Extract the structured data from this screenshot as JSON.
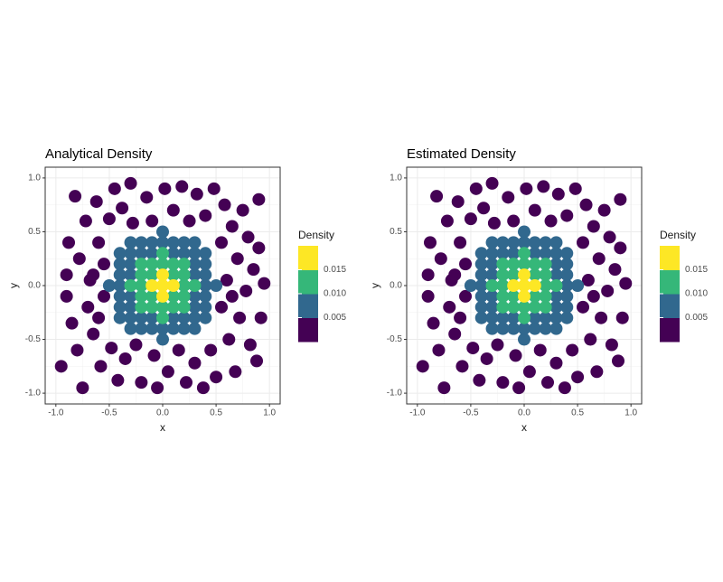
{
  "chart_data": [
    {
      "type": "scatter",
      "title": "Analytical Density",
      "x_label": "x",
      "y_label": "y",
      "xlim": [
        -1.1,
        1.1
      ],
      "ylim": [
        -1.1,
        1.1
      ],
      "xticks": [
        {
          "value": -1.0,
          "label": "-1.0"
        },
        -0.5,
        {
          "value": 0.0,
          "label": "0.0"
        },
        0.5,
        {
          "value": 1.0,
          "label": "1.0"
        }
      ],
      "yticks": [
        {
          "value": -1.0,
          "label": "-1.0"
        },
        -0.5,
        {
          "value": 0.0,
          "label": "0.0"
        },
        0.5,
        {
          "value": 1.0,
          "label": "1.0"
        }
      ],
      "grid": true,
      "legend": {
        "title": "Density",
        "lim": [
          0,
          0.02
        ],
        "colors": [
          "#440154",
          "#31688e",
          "#35b779",
          "#fde725"
        ],
        "breaks": [
          {
            "value": 0.015,
            "label": "0.015"
          },
          {
            "value": 0.01,
            "label": "0.010"
          },
          {
            "value": 0.005,
            "label": "0.005"
          }
        ]
      },
      "series": [
        {
          "color": "#440154",
          "x": [
            -0.95,
            -0.9,
            -0.9,
            -0.88,
            -0.85,
            -0.82,
            -0.8,
            -0.78,
            -0.75,
            -0.72,
            -0.7,
            -0.68,
            -0.65,
            -0.62,
            -0.6,
            -0.58,
            -0.55,
            -0.55,
            -0.5,
            -0.48,
            -0.45,
            -0.42,
            -0.38,
            -0.35,
            -0.3,
            -0.28,
            -0.25,
            -0.2,
            -0.15,
            -0.1,
            -0.08,
            -0.05,
            0.02,
            0.05,
            0.1,
            0.15,
            0.18,
            0.22,
            0.25,
            0.3,
            0.32,
            0.38,
            0.4,
            0.45,
            0.48,
            0.5,
            0.55,
            0.55,
            0.58,
            0.6,
            0.62,
            0.65,
            0.68,
            0.7,
            0.72,
            0.75,
            0.78,
            0.8,
            0.82,
            0.85,
            0.88,
            0.9,
            0.92,
            0.95,
            0.9,
            -0.6,
            0.65,
            -0.65
          ],
          "y": [
            -0.75,
            0.1,
            -0.1,
            0.4,
            -0.35,
            0.83,
            -0.6,
            0.25,
            -0.95,
            0.6,
            -0.2,
            0.05,
            -0.45,
            0.78,
            0.4,
            -0.75,
            -0.1,
            0.2,
            0.62,
            -0.58,
            0.9,
            -0.88,
            0.72,
            -0.68,
            0.95,
            0.58,
            -0.55,
            -0.9,
            0.82,
            0.6,
            -0.65,
            -0.95,
            0.9,
            -0.8,
            0.7,
            -0.6,
            0.92,
            -0.9,
            0.6,
            -0.72,
            0.85,
            -0.95,
            0.65,
            -0.6,
            0.9,
            -0.85,
            0.4,
            -0.2,
            0.75,
            0.05,
            -0.5,
            0.55,
            -0.8,
            0.25,
            -0.3,
            0.7,
            -0.05,
            0.45,
            -0.55,
            0.15,
            -0.7,
            0.35,
            -0.3,
            0.02,
            0.8,
            -0.3,
            -0.1,
            0.1
          ]
        },
        {
          "color": "#31688e",
          "x": [
            0,
            0,
            0,
            0,
            0.1,
            0.1,
            0.1,
            0.1,
            -0.1,
            -0.1,
            -0.1,
            -0.1,
            0.2,
            0.2,
            0.2,
            0.2,
            -0.2,
            -0.2,
            -0.2,
            -0.2,
            0.3,
            0.3,
            0.3,
            0.3,
            0.3,
            0.3,
            0.3,
            0.3,
            -0.3,
            -0.3,
            -0.3,
            -0.3,
            -0.3,
            -0.3,
            -0.3,
            -0.3,
            0.4,
            0.4,
            0.4,
            0.4,
            0.4,
            0.4,
            0.4,
            -0.4,
            -0.4,
            -0.4,
            -0.4,
            -0.4,
            -0.4,
            -0.4,
            0.5,
            -0.5
          ],
          "y": [
            -0.5,
            -0.4,
            0.4,
            0.5,
            -0.4,
            -0.3,
            0.3,
            0.4,
            -0.4,
            -0.3,
            0.3,
            0.4,
            -0.4,
            -0.3,
            0.3,
            0.4,
            -0.4,
            -0.3,
            0.3,
            0.4,
            -0.4,
            -0.3,
            -0.2,
            -0.1,
            0.1,
            0.2,
            0.3,
            0.4,
            -0.4,
            -0.3,
            -0.2,
            -0.1,
            0.1,
            0.2,
            0.3,
            0.4,
            -0.3,
            -0.2,
            -0.1,
            0,
            0.1,
            0.2,
            0.3,
            -0.3,
            -0.2,
            -0.1,
            0,
            0.1,
            0.2,
            0.3,
            0,
            0
          ]
        },
        {
          "color": "#35b779",
          "x": [
            0,
            0,
            0,
            0,
            0.1,
            0.1,
            0.1,
            0.1,
            -0.1,
            -0.1,
            -0.1,
            -0.1,
            0.2,
            0.2,
            0.2,
            0.2,
            0.2,
            -0.2,
            -0.2,
            -0.2,
            -0.2,
            -0.2,
            0.3,
            -0.3
          ],
          "y": [
            -0.3,
            -0.2,
            0.2,
            0.3,
            -0.2,
            -0.1,
            0.1,
            0.2,
            -0.2,
            -0.1,
            0.1,
            0.2,
            -0.2,
            -0.1,
            0,
            0.1,
            0.2,
            -0.2,
            -0.1,
            0,
            0.1,
            0.2,
            0,
            0
          ]
        },
        {
          "color": "#fde725",
          "x": [
            0,
            0.1,
            -0.1,
            0,
            0
          ],
          "y": [
            0,
            0,
            0,
            0.1,
            -0.1
          ]
        }
      ]
    },
    {
      "type": "scatter",
      "title": "Estimated Density",
      "x_label": "x",
      "y_label": "y",
      "xlim": [
        -1.1,
        1.1
      ],
      "ylim": [
        -1.1,
        1.1
      ],
      "xticks": [
        {
          "value": -1.0,
          "label": "-1.0"
        },
        -0.5,
        {
          "value": 0.0,
          "label": "0.0"
        },
        0.5,
        {
          "value": 1.0,
          "label": "1.0"
        }
      ],
      "yticks": [
        {
          "value": -1.0,
          "label": "-1.0"
        },
        -0.5,
        {
          "value": 0.0,
          "label": "0.0"
        },
        0.5,
        {
          "value": 1.0,
          "label": "1.0"
        }
      ],
      "grid": true,
      "legend": {
        "title": "Density",
        "lim": [
          0,
          0.02
        ],
        "colors": [
          "#440154",
          "#31688e",
          "#35b779",
          "#fde725"
        ],
        "breaks": [
          {
            "value": 0.015,
            "label": "0.015"
          },
          {
            "value": 0.01,
            "label": "0.010"
          },
          {
            "value": 0.005,
            "label": "0.005"
          }
        ]
      },
      "series": [
        {
          "color": "#440154",
          "x": [
            -0.95,
            -0.9,
            -0.9,
            -0.88,
            -0.85,
            -0.82,
            -0.8,
            -0.78,
            -0.75,
            -0.72,
            -0.7,
            -0.68,
            -0.65,
            -0.62,
            -0.6,
            -0.58,
            -0.55,
            -0.55,
            -0.5,
            -0.48,
            -0.45,
            -0.42,
            -0.38,
            -0.35,
            -0.3,
            -0.28,
            -0.25,
            -0.2,
            -0.15,
            -0.1,
            -0.08,
            -0.05,
            0.02,
            0.05,
            0.1,
            0.15,
            0.18,
            0.22,
            0.25,
            0.3,
            0.32,
            0.38,
            0.4,
            0.45,
            0.48,
            0.5,
            0.55,
            0.55,
            0.58,
            0.6,
            0.62,
            0.65,
            0.68,
            0.7,
            0.72,
            0.75,
            0.78,
            0.8,
            0.82,
            0.85,
            0.88,
            0.9,
            0.92,
            0.95,
            0.9,
            -0.6,
            0.65,
            -0.65
          ],
          "y": [
            -0.75,
            0.1,
            -0.1,
            0.4,
            -0.35,
            0.83,
            -0.6,
            0.25,
            -0.95,
            0.6,
            -0.2,
            0.05,
            -0.45,
            0.78,
            0.4,
            -0.75,
            -0.1,
            0.2,
            0.62,
            -0.58,
            0.9,
            -0.88,
            0.72,
            -0.68,
            0.95,
            0.58,
            -0.55,
            -0.9,
            0.82,
            0.6,
            -0.65,
            -0.95,
            0.9,
            -0.8,
            0.7,
            -0.6,
            0.92,
            -0.9,
            0.6,
            -0.72,
            0.85,
            -0.95,
            0.65,
            -0.6,
            0.9,
            -0.85,
            0.4,
            -0.2,
            0.75,
            0.05,
            -0.5,
            0.55,
            -0.8,
            0.25,
            -0.3,
            0.7,
            -0.05,
            0.45,
            -0.55,
            0.15,
            -0.7,
            0.35,
            -0.3,
            0.02,
            0.8,
            -0.3,
            -0.1,
            0.1
          ]
        },
        {
          "color": "#31688e",
          "x": [
            0,
            0,
            0,
            0,
            0.1,
            0.1,
            0.1,
            0.1,
            -0.1,
            -0.1,
            -0.1,
            -0.1,
            0.2,
            0.2,
            0.2,
            0.2,
            -0.2,
            -0.2,
            -0.2,
            -0.2,
            0.3,
            0.3,
            0.3,
            0.3,
            0.3,
            0.3,
            0.3,
            0.3,
            -0.3,
            -0.3,
            -0.3,
            -0.3,
            -0.3,
            -0.3,
            -0.3,
            -0.3,
            0.4,
            0.4,
            0.4,
            0.4,
            0.4,
            0.4,
            0.4,
            -0.4,
            -0.4,
            -0.4,
            -0.4,
            -0.4,
            -0.4,
            -0.4,
            0.5,
            -0.5
          ],
          "y": [
            -0.5,
            -0.4,
            0.4,
            0.5,
            -0.4,
            -0.3,
            0.3,
            0.4,
            -0.4,
            -0.3,
            0.3,
            0.4,
            -0.4,
            -0.3,
            0.3,
            0.4,
            -0.4,
            -0.3,
            0.3,
            0.4,
            -0.4,
            -0.3,
            -0.2,
            -0.1,
            0.1,
            0.2,
            0.3,
            0.4,
            -0.4,
            -0.3,
            -0.2,
            -0.1,
            0.1,
            0.2,
            0.3,
            0.4,
            -0.3,
            -0.2,
            -0.1,
            0,
            0.1,
            0.2,
            0.3,
            -0.3,
            -0.2,
            -0.1,
            0,
            0.1,
            0.2,
            0.3,
            0,
            0
          ]
        },
        {
          "color": "#35b779",
          "x": [
            0,
            0,
            0,
            0,
            0.1,
            0.1,
            0.1,
            0.1,
            -0.1,
            -0.1,
            -0.1,
            -0.1,
            0.2,
            0.2,
            0.2,
            0.2,
            0.2,
            -0.2,
            -0.2,
            -0.2,
            -0.2,
            -0.2,
            0.3,
            -0.3
          ],
          "y": [
            -0.3,
            -0.2,
            0.2,
            0.3,
            -0.2,
            -0.1,
            0.1,
            0.2,
            -0.2,
            -0.1,
            0.1,
            0.2,
            -0.2,
            -0.1,
            0,
            0.1,
            0.2,
            -0.2,
            -0.1,
            0,
            0.1,
            0.2,
            0,
            0
          ]
        },
        {
          "color": "#fde725",
          "x": [
            0,
            0.1,
            -0.1,
            0,
            0
          ],
          "y": [
            0,
            0,
            0,
            0.1,
            -0.1
          ]
        }
      ]
    }
  ]
}
